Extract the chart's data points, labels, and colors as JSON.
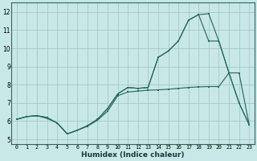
{
  "xlabel": "Humidex (Indice chaleur)",
  "bg_color": "#c8e8e8",
  "grid_color": "#a8c8c8",
  "line_color": "#2a6b5e",
  "xlim": [
    -0.5,
    23.5
  ],
  "ylim": [
    4.75,
    12.5
  ],
  "yticks": [
    5,
    6,
    7,
    8,
    9,
    10,
    11,
    12
  ],
  "xticks": [
    0,
    1,
    2,
    3,
    4,
    5,
    6,
    7,
    8,
    9,
    10,
    11,
    12,
    13,
    14,
    15,
    16,
    17,
    18,
    19,
    20,
    21,
    22,
    23
  ],
  "line1_x": [
    0,
    1,
    2,
    3,
    4,
    5,
    6,
    7,
    8,
    9,
    10,
    11,
    12,
    13,
    14,
    15,
    16,
    17,
    18,
    19,
    20,
    21,
    22,
    23
  ],
  "line1_y": [
    6.1,
    6.25,
    6.3,
    6.2,
    5.9,
    5.3,
    5.5,
    5.75,
    6.1,
    6.7,
    7.5,
    7.85,
    7.8,
    7.85,
    9.5,
    9.85,
    10.4,
    11.55,
    11.85,
    10.4,
    10.4,
    8.65,
    8.65,
    5.8
  ],
  "line2_x": [
    0,
    1,
    2,
    3,
    4,
    5,
    6,
    7,
    8,
    9,
    10,
    11,
    12,
    13,
    14,
    15,
    16,
    17,
    18,
    19,
    20,
    21,
    22,
    23
  ],
  "line2_y": [
    6.1,
    6.25,
    6.3,
    6.2,
    5.9,
    5.3,
    5.5,
    5.75,
    6.1,
    6.7,
    7.5,
    7.85,
    7.8,
    7.85,
    9.5,
    9.85,
    10.4,
    11.55,
    11.85,
    11.9,
    10.4,
    8.65,
    7.0,
    5.8
  ],
  "line3_x": [
    0,
    1,
    2,
    3,
    4,
    5,
    6,
    7,
    8,
    9,
    10,
    11,
    12,
    13,
    14,
    15,
    16,
    17,
    18,
    19,
    20,
    21,
    22,
    23
  ],
  "line3_y": [
    6.1,
    6.25,
    6.3,
    6.15,
    5.9,
    5.3,
    5.5,
    5.72,
    6.05,
    6.55,
    7.4,
    7.6,
    7.65,
    7.7,
    7.72,
    7.75,
    7.8,
    7.85,
    7.88,
    7.9,
    7.9,
    8.65,
    7.0,
    5.8
  ]
}
